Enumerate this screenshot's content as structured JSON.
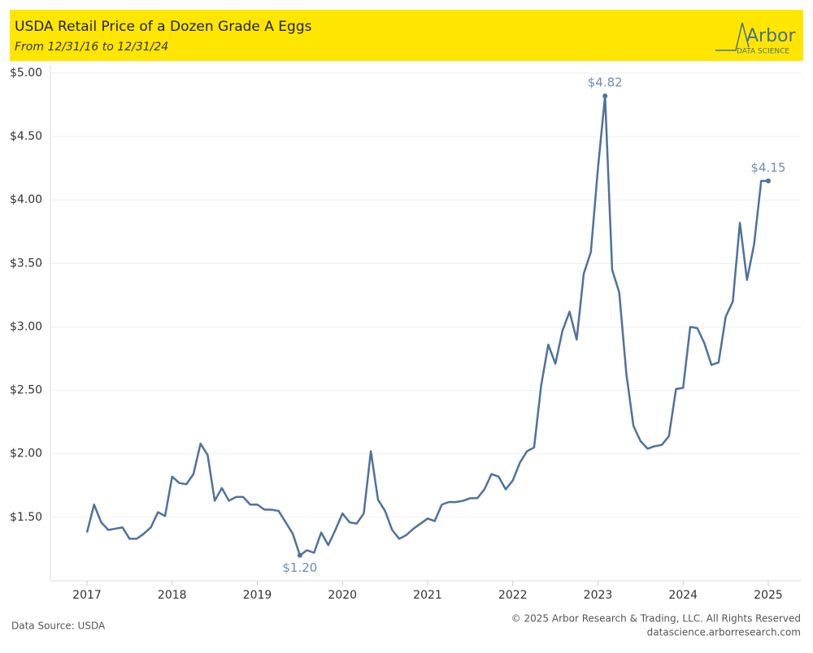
{
  "header": {
    "title": "USDA Retail Price of a Dozen Grade A Eggs",
    "subtitle": "From 12/31/16  to 12/31/24",
    "logo": "Arbor",
    "logo_sub": "DATA SCIENCE"
  },
  "footer": {
    "source": "Data Source: USDA",
    "copyright": "© 2025 Arbor Research & Trading, LLC. All Rights Reserved",
    "website": "datascience.arborresearch.com"
  },
  "chart_data": {
    "type": "line",
    "categories": [
      "2017",
      null,
      null,
      null,
      null,
      null,
      null,
      null,
      null,
      null,
      null,
      null,
      "2018",
      null,
      null,
      null,
      null,
      null,
      null,
      null,
      null,
      null,
      null,
      null,
      "2019",
      null,
      null,
      null,
      null,
      null,
      null,
      null,
      null,
      null,
      null,
      null,
      "2020",
      null,
      null,
      null,
      null,
      null,
      null,
      null,
      null,
      null,
      null,
      null,
      "2021",
      null,
      null,
      null,
      null,
      null,
      null,
      null,
      null,
      null,
      null,
      null,
      "2022",
      null,
      null,
      null,
      null,
      null,
      null,
      null,
      null,
      null,
      null,
      null,
      "2023",
      null,
      null,
      null,
      null,
      null,
      null,
      null,
      null,
      null,
      null,
      null,
      "2024",
      null,
      null,
      null,
      null,
      null,
      null,
      null,
      null,
      null,
      null,
      null,
      "2025"
    ],
    "series": [
      {
        "name": "Price",
        "color": "#4e729b",
        "values": [
          1.38,
          1.6,
          1.46,
          1.4,
          1.41,
          1.42,
          1.33,
          1.33,
          1.37,
          1.42,
          1.54,
          1.51,
          1.82,
          1.77,
          1.76,
          1.84,
          2.08,
          1.99,
          1.63,
          1.73,
          1.63,
          1.66,
          1.66,
          1.6,
          1.6,
          1.56,
          1.56,
          1.55,
          1.46,
          1.37,
          1.2,
          1.24,
          1.22,
          1.38,
          1.28,
          1.4,
          1.53,
          1.46,
          1.45,
          1.53,
          2.02,
          1.64,
          1.55,
          1.4,
          1.33,
          1.36,
          1.41,
          1.45,
          1.49,
          1.47,
          1.6,
          1.62,
          1.62,
          1.63,
          1.65,
          1.65,
          1.72,
          1.84,
          1.82,
          1.72,
          1.79,
          1.93,
          2.02,
          2.05,
          2.54,
          2.86,
          2.71,
          2.97,
          3.12,
          2.9,
          3.42,
          3.59,
          4.25,
          4.82,
          3.45,
          3.27,
          2.63,
          2.22,
          2.1,
          2.04,
          2.06,
          2.07,
          2.14,
          2.51,
          2.52,
          3.0,
          2.99,
          2.87,
          2.7,
          2.72,
          3.08,
          3.2,
          3.82,
          3.37,
          3.65,
          4.15,
          4.15
        ],
        "value_labels": [
          null,
          null,
          null,
          null,
          null,
          null,
          null,
          null,
          null,
          null,
          null,
          null,
          null,
          null,
          null,
          null,
          null,
          null,
          null,
          null,
          null,
          null,
          null,
          null,
          null,
          null,
          null,
          null,
          null,
          null,
          "$1.20",
          null,
          null,
          null,
          null,
          null,
          null,
          null,
          null,
          null,
          null,
          null,
          null,
          null,
          null,
          null,
          null,
          null,
          null,
          null,
          null,
          null,
          null,
          null,
          null,
          null,
          null,
          null,
          null,
          null,
          null,
          null,
          null,
          null,
          null,
          null,
          null,
          null,
          null,
          null,
          null,
          null,
          null,
          "$4.82",
          null,
          null,
          null,
          null,
          null,
          null,
          null,
          null,
          null,
          null,
          null,
          null,
          null,
          null,
          null,
          null,
          null,
          null,
          null,
          null,
          null,
          null,
          "$4.15"
        ]
      }
    ],
    "ylim": [
      1.0,
      5.07
    ],
    "yticks": [
      {
        "value": 1.5,
        "label": "$1.50"
      },
      {
        "value": 2.0,
        "label": "$2.00"
      },
      {
        "value": 2.5,
        "label": "$2.50"
      },
      {
        "value": 3.0,
        "label": "$3.00"
      },
      {
        "value": 3.5,
        "label": "$3.50"
      },
      {
        "value": 4.0,
        "label": "$4.00"
      },
      {
        "value": 4.5,
        "label": "$4.50"
      },
      {
        "value": 5.0,
        "label": "$5.00"
      }
    ],
    "grid": true
  }
}
